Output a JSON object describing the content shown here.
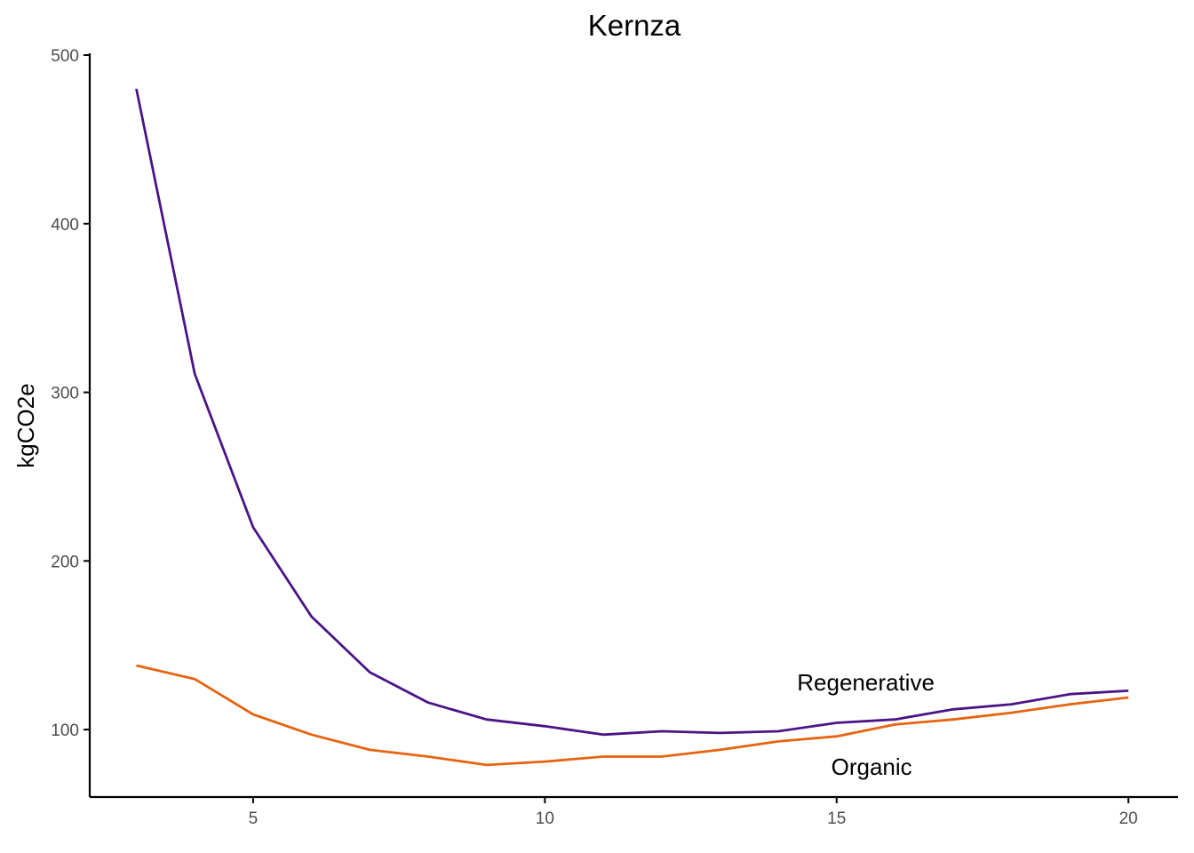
{
  "chart_data": {
    "type": "line",
    "title": "Kernza",
    "xlabel": "",
    "ylabel": "kgCO2e",
    "xlim": [
      2.2,
      20.85
    ],
    "ylim": [
      60,
      500
    ],
    "x_ticks": [
      5,
      10,
      15,
      20
    ],
    "y_ticks": [
      100,
      200,
      300,
      400,
      500
    ],
    "grid": false,
    "legend": "none",
    "x": [
      3,
      4,
      5,
      6,
      7,
      8,
      9,
      10,
      11,
      12,
      13,
      14,
      15,
      16,
      17,
      18,
      19,
      20
    ],
    "series": [
      {
        "name": "Regenerative",
        "color": "#4a1486",
        "values": [
          480,
          311,
          220,
          167,
          134,
          116,
          106,
          102,
          97,
          99,
          98,
          99,
          104,
          106,
          112,
          115,
          121,
          123
        ],
        "label_at": [
          15.5,
          128
        ]
      },
      {
        "name": "Organic",
        "color": "#e6640f",
        "values": [
          138,
          130,
          109,
          97,
          88,
          84,
          79,
          81,
          84,
          84,
          88,
          93,
          96,
          103,
          106,
          110,
          115,
          119
        ],
        "label_at": [
          15.6,
          78
        ]
      }
    ]
  }
}
